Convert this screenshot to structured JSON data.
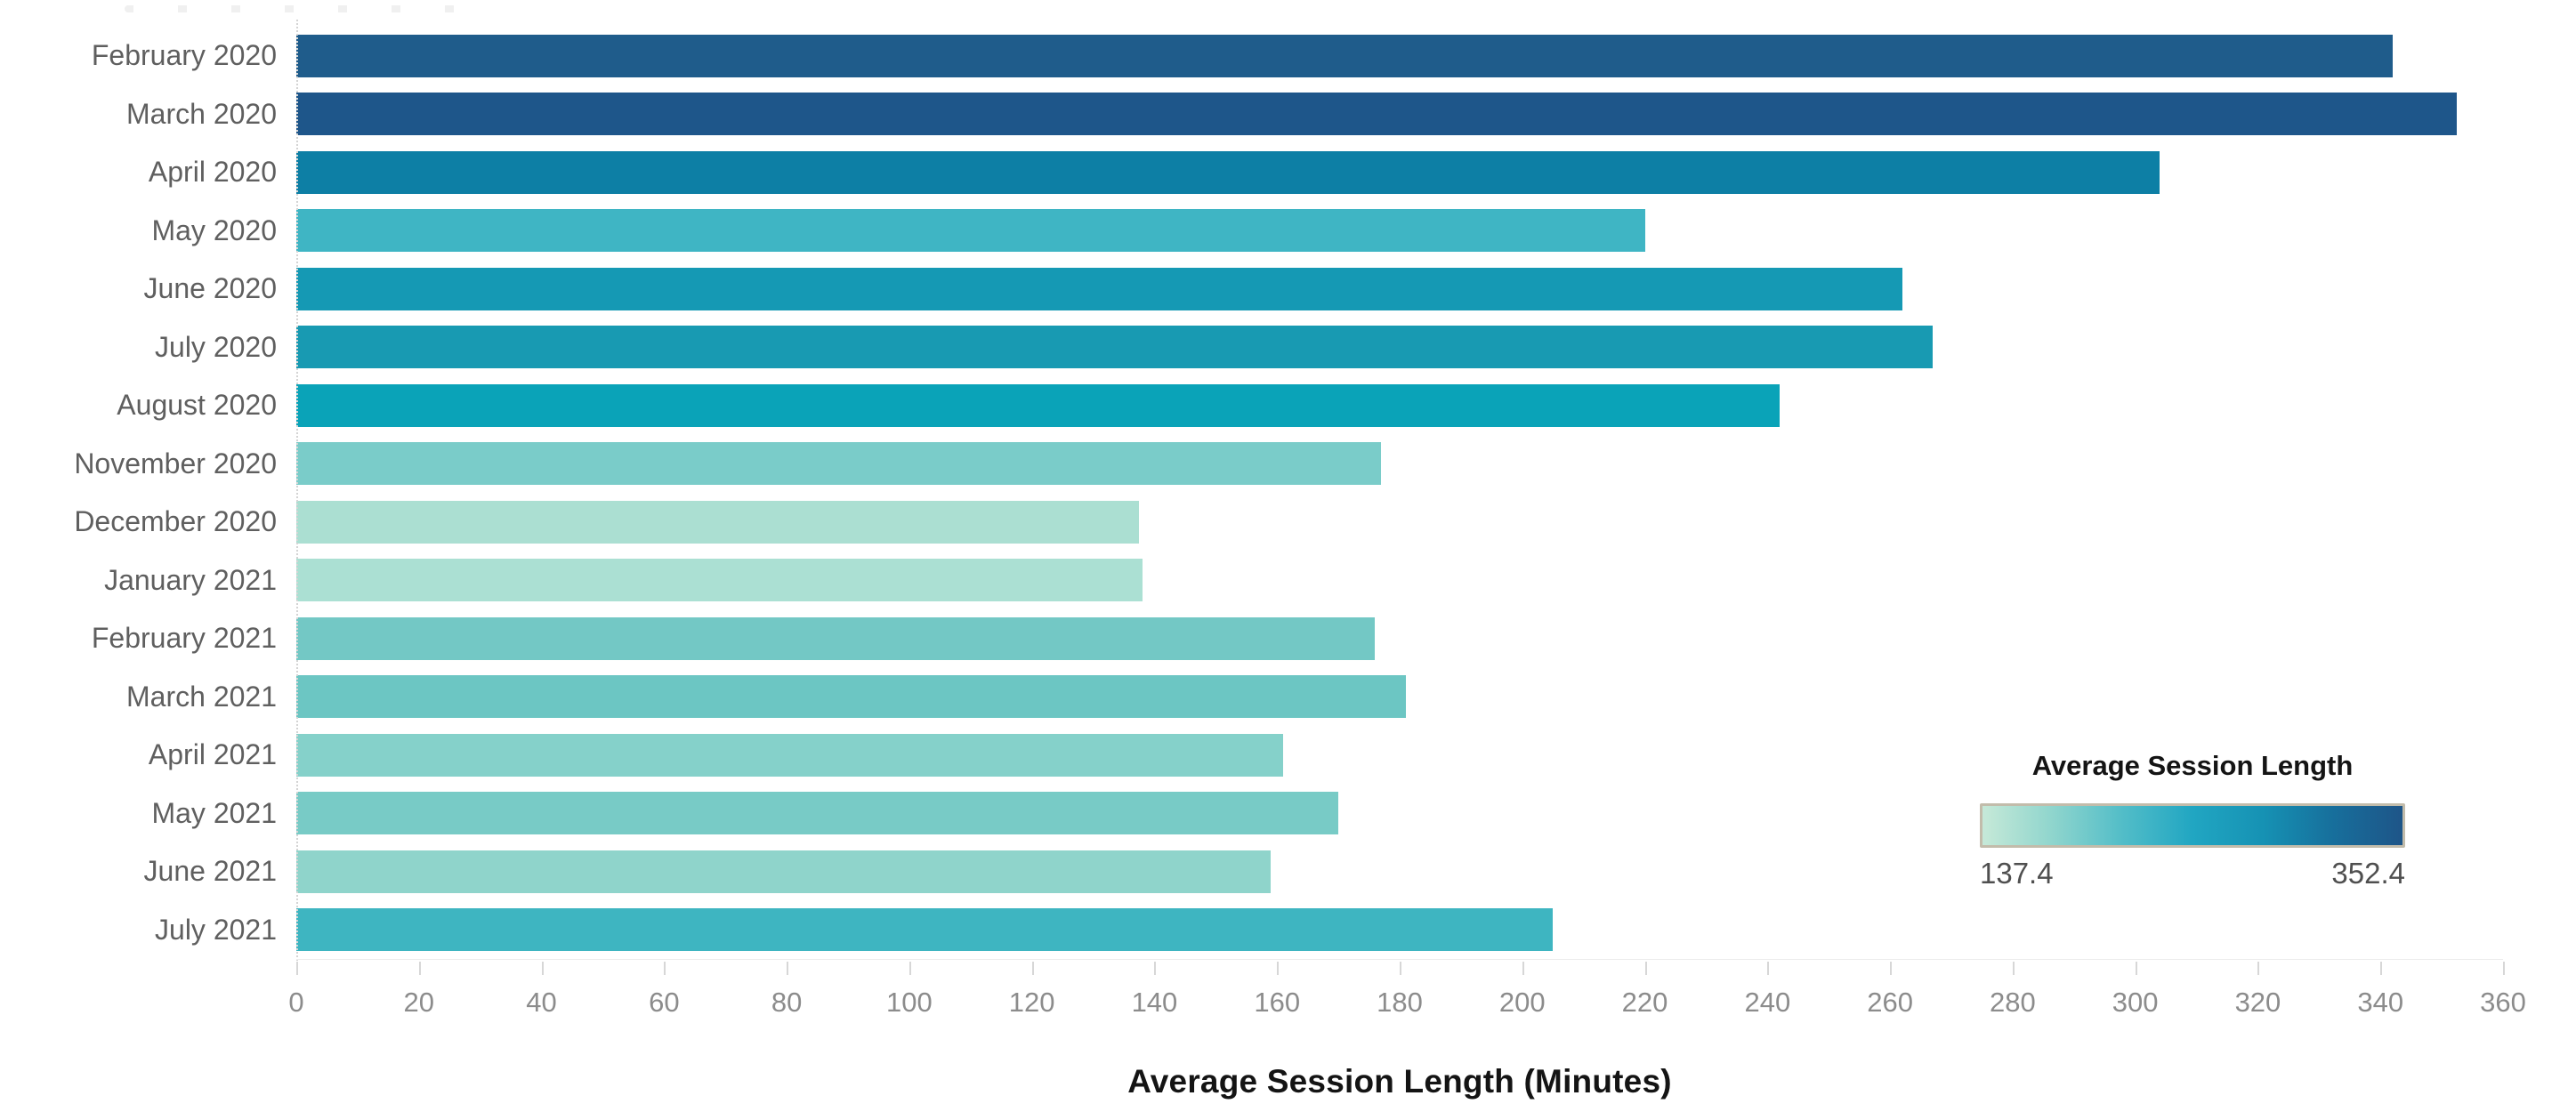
{
  "chart_data": {
    "type": "bar",
    "orientation": "horizontal",
    "xlabel": "Average Session Length (Minutes)",
    "xlim": [
      0,
      360
    ],
    "x_ticks": [
      0,
      20,
      40,
      60,
      80,
      100,
      120,
      140,
      160,
      180,
      200,
      220,
      240,
      260,
      280,
      300,
      320,
      340,
      360
    ],
    "grid": false,
    "categories": [
      "February 2020",
      "March 2020",
      "April 2020",
      "May 2020",
      "June 2020",
      "July 2020",
      "August 2020",
      "November 2020",
      "December 2020",
      "January 2021",
      "February 2021",
      "March 2021",
      "April 2021",
      "May 2021",
      "June 2021",
      "July 2021"
    ],
    "values": [
      342,
      352.4,
      304,
      220,
      262,
      267,
      242,
      177,
      137.4,
      138,
      176,
      181,
      161,
      170,
      159,
      205
    ],
    "bar_colors": [
      "#1f5c8b",
      "#1e568a",
      "#0d7fa5",
      "#3fb5c4",
      "#1599b4",
      "#189ab2",
      "#0aa3b8",
      "#7accc9",
      "#abdfd2",
      "#abe0d3",
      "#73c8c5",
      "#6cc6c3",
      "#85d1ca",
      "#78cbc6",
      "#8fd4cb",
      "#3eb5c1"
    ],
    "legend": {
      "position": "right-middle",
      "title": "Average Session Length",
      "min_label": "137.4",
      "max_label": "352.4",
      "gradient_stops": [
        "#c6e9d8",
        "#8fd5cd",
        "#52bdc8",
        "#21a6c2",
        "#1692b4",
        "#176f9c",
        "#1e5588"
      ]
    },
    "colors": {
      "category_label_text": "#5f5f5f",
      "tick_label_text": "#8c8c8c",
      "axis_title_text": "#141414"
    }
  }
}
